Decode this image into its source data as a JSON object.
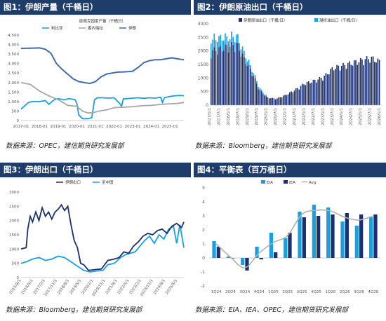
{
  "panels": [
    {
      "title": "图1：伊朗产量（千桶日）",
      "source": "数据来源：OPEC，建信期货研究发展部"
    },
    {
      "title": "图2：伊朗原油出口（千桶日）",
      "source": "数据来源：Bloomberg，建信期货研究发展部"
    },
    {
      "title": "图3：伊朗出口（千桶日）",
      "source": "数据来源：Bloomberg，建信期货研究发展部"
    },
    {
      "title": "图4：平衡表（百万桶日）",
      "source": "数据来源：EIA、IEA、OPEC，建信期货研究发展部"
    }
  ],
  "colors": {
    "navy": "#1f3d6b",
    "dark_blue": "#1c2f6e",
    "light_blue": "#1aa0e0",
    "mid_blue": "#3f6bb0",
    "gray": "#a6a6a6"
  },
  "chart_data": [
    {
      "type": "line",
      "title": "",
      "legend": [
        "利比亚",
        "委内瑞拉",
        "伊朗"
      ],
      "legend_title": "欧佩克国家产量（千桶日）",
      "legend_position": "top",
      "yticks": [
        "0",
        "500",
        "1,000",
        "1,500",
        "2,000",
        "2,500",
        "3,000",
        "3,500",
        "4,000",
        "4,500"
      ],
      "ylim": [
        0,
        4500
      ],
      "xticks": [
        "2017-01",
        "2018-01",
        "2019-01",
        "2020-01",
        "2021-01",
        "2022-01",
        "2023-01",
        "2024-01",
        "2025-01"
      ],
      "xlim": [
        2017.0,
        2025.75
      ],
      "series": [
        {
          "name": "伊朗",
          "color": "#3f6bb0",
          "x": [
            2017.0,
            2017.5,
            2018.0,
            2018.3,
            2018.6,
            2018.9,
            2019.2,
            2019.5,
            2019.8,
            2020.1,
            2020.4,
            2020.7,
            2021.0,
            2021.3,
            2021.6,
            2021.9,
            2022.2,
            2022.5,
            2022.8,
            2023.0,
            2023.3,
            2023.6,
            2023.9,
            2024.2,
            2024.5,
            2024.8,
            2025.1,
            2025.4,
            2025.75
          ],
          "values": [
            3800,
            3810,
            3820,
            3750,
            3550,
            3000,
            2700,
            2450,
            2200,
            2050,
            2000,
            1950,
            2050,
            2300,
            2450,
            2500,
            2550,
            2560,
            2580,
            2600,
            2800,
            3050,
            3150,
            3200,
            3200,
            3250,
            3300,
            3250,
            3200
          ]
        },
        {
          "name": "利比亚",
          "color": "#1aa0e0",
          "x": [
            2017.0,
            2017.2,
            2017.4,
            2017.6,
            2017.8,
            2018.0,
            2018.3,
            2018.5,
            2018.6,
            2018.8,
            2019.0,
            2019.3,
            2019.6,
            2019.9,
            2020.0,
            2020.1,
            2020.3,
            2020.6,
            2020.8,
            2020.95,
            2021.1,
            2021.4,
            2021.7,
            2022.0,
            2022.3,
            2022.4,
            2022.5,
            2022.7,
            2023.0,
            2023.3,
            2023.6,
            2023.9,
            2024.2,
            2024.5,
            2024.6,
            2024.7,
            2024.9,
            2025.2,
            2025.5,
            2025.75
          ],
          "values": [
            600,
            780,
            950,
            1000,
            1000,
            1000,
            1050,
            850,
            950,
            1100,
            1150,
            1100,
            1150,
            1100,
            900,
            300,
            100,
            100,
            150,
            1100,
            1200,
            1200,
            1180,
            1200,
            900,
            750,
            1150,
            1150,
            1180,
            1200,
            1170,
            1200,
            1180,
            1220,
            950,
            1200,
            1250,
            1300,
            1320,
            1310
          ]
        },
        {
          "name": "委内瑞拉",
          "color": "#a6a6a6",
          "x": [
            2017.0,
            2017.5,
            2018.0,
            2018.5,
            2019.0,
            2019.5,
            2020.0,
            2020.3,
            2020.6,
            2020.9,
            2021.2,
            2021.6,
            2022.0,
            2022.5,
            2023.0,
            2023.5,
            2024.0,
            2024.5,
            2025.0,
            2025.4,
            2025.75
          ],
          "values": [
            2000,
            1900,
            1550,
            1300,
            1100,
            800,
            750,
            500,
            400,
            420,
            500,
            560,
            680,
            700,
            730,
            780,
            800,
            850,
            880,
            900,
            950
          ]
        }
      ]
    },
    {
      "type": "bar",
      "title": "",
      "legend": [
        "伊朗原油出口（千桶/日）",
        "凝析油出口（千桶/日）"
      ],
      "legend_position": "top",
      "yticks": [
        "0",
        "500",
        "1000",
        "1500",
        "2000",
        "2500",
        "3000"
      ],
      "ylim": [
        0,
        3000
      ],
      "xticks": [
        "2017/1/1",
        "2017/7/1",
        "2018/1/1",
        "2018/7/1",
        "2019/1/1",
        "2019/7/1",
        "2020/1/1",
        "2020/7/1",
        "2021/1/1",
        "2021/7/1",
        "2022/1/1",
        "2022/7/1",
        "2023/1/1",
        "2023/7/1",
        "2024/1/1",
        "2024/7/1",
        "2025/1/1",
        "2025/7/1",
        "2026/1/1"
      ],
      "xlim": [
        2017.0,
        2026.0
      ],
      "series": [
        {
          "name": "伊朗原油出口（千桶/日）",
          "color": "#1c2f6e",
          "x": [
            2017.0,
            2017.5,
            2018.0,
            2018.4,
            2018.8,
            2019.2,
            2019.6,
            2020.0,
            2020.5,
            2021.0,
            2021.5,
            2022.0,
            2022.5,
            2023.0,
            2023.5,
            2024.0,
            2024.5,
            2025.0,
            2025.5,
            2026.0
          ],
          "values": [
            2100,
            2200,
            2300,
            2400,
            1800,
            1300,
            600,
            300,
            250,
            400,
            600,
            850,
            950,
            1100,
            1450,
            1550,
            1650,
            1750,
            1850,
            1700
          ]
        },
        {
          "name": "凝析油出口（千桶/日）",
          "color": "#1aa0e0",
          "x": [
            2017.0,
            2017.5,
            2018.0,
            2018.4,
            2018.8,
            2019.2,
            2019.6,
            2020.0
          ],
          "values": [
            550,
            450,
            400,
            350,
            250,
            150,
            80,
            50
          ]
        }
      ]
    },
    {
      "type": "line",
      "title": "",
      "legend": [
        "伊朗出口",
        "至中国"
      ],
      "legend_position": "top",
      "yticks": [
        "0",
        "500",
        "1000",
        "1500",
        "2000",
        "2500",
        "3000"
      ],
      "ylim": [
        0,
        3000
      ],
      "xticks": [
        "2015/8/1",
        "2016/5/1",
        "2017/2/1",
        "2017/11/1",
        "2018/8/1",
        "2019/5/1",
        "2020/2/1",
        "2020/11/1",
        "2021/8/1",
        "2022/5/1",
        "2023/2/1",
        "2023/11/1",
        "2024/8/1",
        "2025/5/1"
      ],
      "xlim": [
        2015.58,
        2025.75
      ],
      "series": [
        {
          "name": "伊朗出口",
          "color": "#1c2f6e",
          "x": [
            2015.58,
            2015.9,
            2016.0,
            2016.15,
            2016.3,
            2016.5,
            2016.7,
            2016.9,
            2017.1,
            2017.3,
            2017.5,
            2017.7,
            2017.9,
            2018.1,
            2018.3,
            2018.5,
            2018.7,
            2018.9,
            2019.1,
            2019.3,
            2019.5,
            2019.8,
            2020.2,
            2020.6,
            2021.0,
            2021.4,
            2021.7,
            2022.0,
            2022.3,
            2022.6,
            2022.9,
            2023.2,
            2023.5,
            2023.8,
            2024.1,
            2024.4,
            2024.7,
            2025.0,
            2025.3,
            2025.6,
            2025.75
          ],
          "values": [
            1000,
            1050,
            1700,
            2150,
            1950,
            2300,
            2000,
            2450,
            2150,
            2300,
            2050,
            2300,
            2400,
            2550,
            2350,
            2500,
            1850,
            1300,
            1050,
            500,
            450,
            250,
            280,
            300,
            600,
            650,
            700,
            900,
            850,
            1100,
            1250,
            1450,
            1550,
            1500,
            1650,
            1700,
            1550,
            1800,
            1900,
            1750,
            1950
          ]
        },
        {
          "name": "至中国",
          "color": "#1aa0e0",
          "x": [
            2015.58,
            2015.9,
            2016.3,
            2016.7,
            2017.1,
            2017.5,
            2017.9,
            2018.3,
            2018.7,
            2019.1,
            2019.5,
            2019.9,
            2020.3,
            2020.7,
            2021.0,
            2021.4,
            2021.8,
            2022.1,
            2022.4,
            2022.7,
            2023.0,
            2023.3,
            2023.6,
            2023.9,
            2024.2,
            2024.5,
            2024.8,
            2025.1,
            2025.3,
            2025.5,
            2025.75
          ],
          "values": [
            500,
            550,
            650,
            700,
            600,
            650,
            750,
            700,
            550,
            400,
            250,
            200,
            230,
            250,
            450,
            500,
            700,
            800,
            850,
            900,
            1100,
            1300,
            1450,
            1200,
            1500,
            1350,
            1700,
            1800,
            1200,
            1850,
            1050
          ]
        }
      ]
    },
    {
      "type": "bar",
      "title": "",
      "legend": [
        "EIA",
        "IEA",
        "Avg"
      ],
      "legend_position": "top",
      "yticks": [
        "-2",
        "-1",
        "0",
        "1",
        "2",
        "3",
        "4",
        "5"
      ],
      "ylim": [
        -2,
        5
      ],
      "categories": [
        "1Q24",
        "2Q24",
        "3Q24",
        "4Q24",
        "1Q25",
        "2Q25",
        "3Q25",
        "4Q25",
        "1Q26",
        "2Q26",
        "3Q26",
        "4Q26"
      ],
      "series": [
        {
          "name": "EIA",
          "color": "#1aa0e0",
          "values": [
            1.2,
            0.1,
            -0.5,
            0.8,
            1.8,
            1.4,
            3.3,
            3.8,
            3.6,
            2.6,
            2.3,
            2.9
          ]
        },
        {
          "name": "IEA",
          "color": "#1c2f6e",
          "values": [
            0.8,
            0.0,
            -0.9,
            -0.1,
            0.4,
            1.8,
            2.9,
            3.0,
            3.1,
            3.2,
            3.1,
            3.1
          ]
        },
        {
          "name": "Avg",
          "color": "#b0b0b0",
          "values": [
            1.0,
            0.05,
            -0.7,
            0.35,
            1.1,
            1.6,
            3.1,
            3.4,
            3.35,
            2.9,
            2.7,
            3.0
          ]
        }
      ]
    }
  ]
}
